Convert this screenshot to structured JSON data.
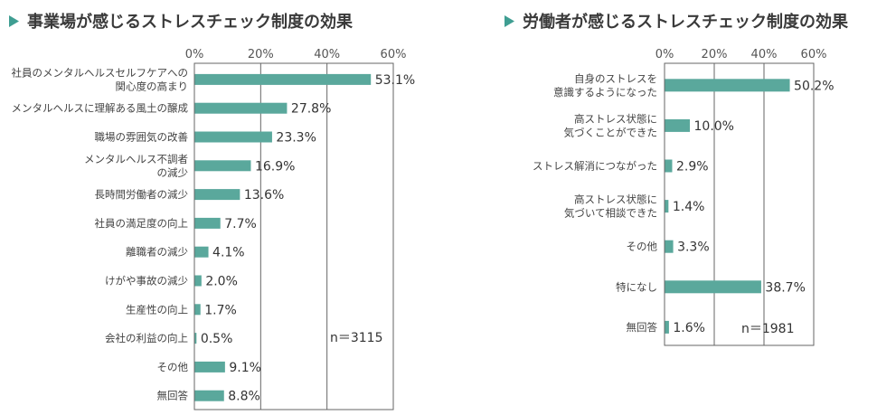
{
  "chart_data": [
    {
      "type": "bar",
      "orientation": "horizontal",
      "title": "事業場が感じるストレスチェック制度の効果",
      "ticks": [
        "0%",
        "20%",
        "40%",
        "60%"
      ],
      "xlim": [
        0,
        60
      ],
      "unit": "%",
      "categories": [
        [
          "社員のメンタルヘルスセルフケアへの",
          "関心度の高まり"
        ],
        [
          "メンタルヘルスに理解ある風土の醸成"
        ],
        [
          "職場の雰囲気の改善"
        ],
        [
          "メンタルヘルス不調者",
          "の減少"
        ],
        [
          "長時間労働者の減少"
        ],
        [
          "社員の満足度の向上"
        ],
        [
          "離職者の減少"
        ],
        [
          "けがや事故の減少"
        ],
        [
          "生産性の向上"
        ],
        [
          "会社の利益の向上"
        ],
        [
          "その他"
        ],
        [
          "無回答"
        ]
      ],
      "values": [
        53.1,
        27.8,
        23.3,
        16.9,
        13.6,
        7.7,
        4.1,
        2.0,
        1.7,
        0.5,
        9.1,
        8.8
      ],
      "value_labels": [
        "53.1%",
        "27.8%",
        "23.3%",
        "16.9%",
        "13.6%",
        "7.7%",
        "4.1%",
        "2.0%",
        "1.7%",
        "0.5%",
        "9.1%",
        "8.8%"
      ],
      "n_label": "n＝3115",
      "bar_color": "#5aa89c",
      "grid": true
    },
    {
      "type": "bar",
      "orientation": "horizontal",
      "title": "労働者が感じるストレスチェック制度の効果",
      "ticks": [
        "0%",
        "20%",
        "40%",
        "60%"
      ],
      "xlim": [
        0,
        60
      ],
      "unit": "%",
      "categories": [
        [
          "自身のストレスを",
          "意識するようになった"
        ],
        [
          "高ストレス状態に",
          "気づくことができた"
        ],
        [
          "ストレス解消につながった"
        ],
        [
          "高ストレス状態に",
          "気づいて相談できた"
        ],
        [
          "その他"
        ],
        [
          "特になし"
        ],
        [
          "無回答"
        ]
      ],
      "values": [
        50.2,
        10.0,
        2.9,
        1.4,
        3.3,
        38.7,
        1.6
      ],
      "value_labels": [
        "50.2%",
        "10.0%",
        "2.9%",
        "1.4%",
        "3.3%",
        "38.7%",
        "1.6%"
      ],
      "n_label": "n＝1981",
      "bar_color": "#5aa89c",
      "grid": true
    }
  ],
  "colors": {
    "accent": "#3f9e92",
    "bar": "#5aa89c"
  }
}
